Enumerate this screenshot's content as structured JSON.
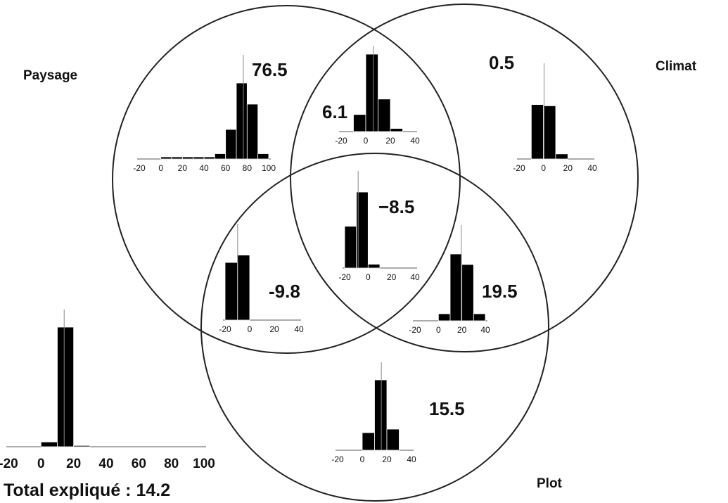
{
  "sets": {
    "paysage": "Paysage",
    "climat": "Climat",
    "plot": "Plot"
  },
  "regions": {
    "paysage_only": "76.5",
    "paysage_climat": "6.1",
    "climat_only": "0.5",
    "all_three": "−8.5",
    "paysage_plot": "-9.8",
    "climat_plot": "19.5",
    "plot_only": "15.5"
  },
  "total": {
    "label": "Total expliqué : 14.2"
  },
  "chart_data": [
    {
      "type": "bar",
      "title": "",
      "region": "paysage_only",
      "x_ticks": [
        "-20",
        "0",
        "20",
        "40",
        "60",
        "80",
        "100"
      ],
      "bin_edges": [
        0,
        10,
        20,
        30,
        40,
        50,
        60,
        70,
        80,
        90,
        100
      ],
      "bins": [
        0.02,
        0.02,
        0.02,
        0.02,
        0.02,
        0.05,
        0.28,
        0.72,
        0.52,
        0.05
      ],
      "reference_line": 76.5
    },
    {
      "type": "bar",
      "title": "",
      "region": "paysage_climat",
      "x_ticks": [
        "-20",
        "0",
        "20",
        "40"
      ],
      "bin_edges": [
        -10,
        0,
        10,
        20,
        30,
        40
      ],
      "bins": [
        0.22,
        1.0,
        0.42,
        0.04,
        0.0
      ],
      "reference_line": 6.1
    },
    {
      "type": "bar",
      "title": "",
      "region": "climat_only",
      "x_ticks": [
        "-20",
        "0",
        "20",
        "40"
      ],
      "bin_edges": [
        -10,
        0,
        10,
        20,
        30,
        40
      ],
      "bins": [
        0.86,
        0.84,
        0.08,
        0.0,
        0.0
      ],
      "reference_line": 0.5
    },
    {
      "type": "bar",
      "title": "",
      "region": "all_three",
      "x_ticks": [
        "-20",
        "0",
        "20",
        "40"
      ],
      "bin_edges": [
        -20,
        -10,
        0,
        10,
        20,
        30,
        40
      ],
      "bins": [
        0.55,
        1.0,
        0.05,
        0.0,
        0.0,
        0.0
      ],
      "reference_line": -8.5
    },
    {
      "type": "bar",
      "title": "",
      "region": "paysage_plot",
      "x_ticks": [
        "-20",
        "0",
        "20",
        "40"
      ],
      "bin_edges": [
        -20,
        -10,
        0,
        10,
        20,
        30,
        40
      ],
      "bins": [
        0.78,
        0.88,
        0.0,
        0.0,
        0.0,
        0.0
      ],
      "reference_line": -9.8
    },
    {
      "type": "bar",
      "title": "",
      "region": "climat_plot",
      "x_ticks": [
        "-20",
        "0",
        "20",
        "40"
      ],
      "bin_edges": [
        -20,
        -10,
        0,
        10,
        20,
        30,
        40
      ],
      "bins": [
        0.0,
        0.0,
        0.1,
        0.95,
        0.8,
        0.1
      ],
      "reference_line": 19.5
    },
    {
      "type": "bar",
      "title": "",
      "region": "plot_only",
      "x_ticks": [
        "-20",
        "0",
        "20",
        "40"
      ],
      "bin_edges": [
        -20,
        -10,
        0,
        10,
        20,
        30,
        40
      ],
      "bins": [
        0.0,
        0.0,
        0.25,
        1.0,
        0.3,
        0.0
      ],
      "reference_line": 15.5
    },
    {
      "type": "bar",
      "title": "",
      "region": "total",
      "x_ticks": [
        "-20",
        "0",
        "20",
        "40",
        "60",
        "80",
        "100"
      ],
      "bin_edges": [
        0,
        10,
        20,
        30,
        40,
        50,
        60,
        70,
        80,
        90,
        100
      ],
      "bins": [
        0.04,
        1.0,
        0.01,
        0.0,
        0.0,
        0.0,
        0.0,
        0.0,
        0.0,
        0.0
      ],
      "reference_line": 14.2
    }
  ]
}
